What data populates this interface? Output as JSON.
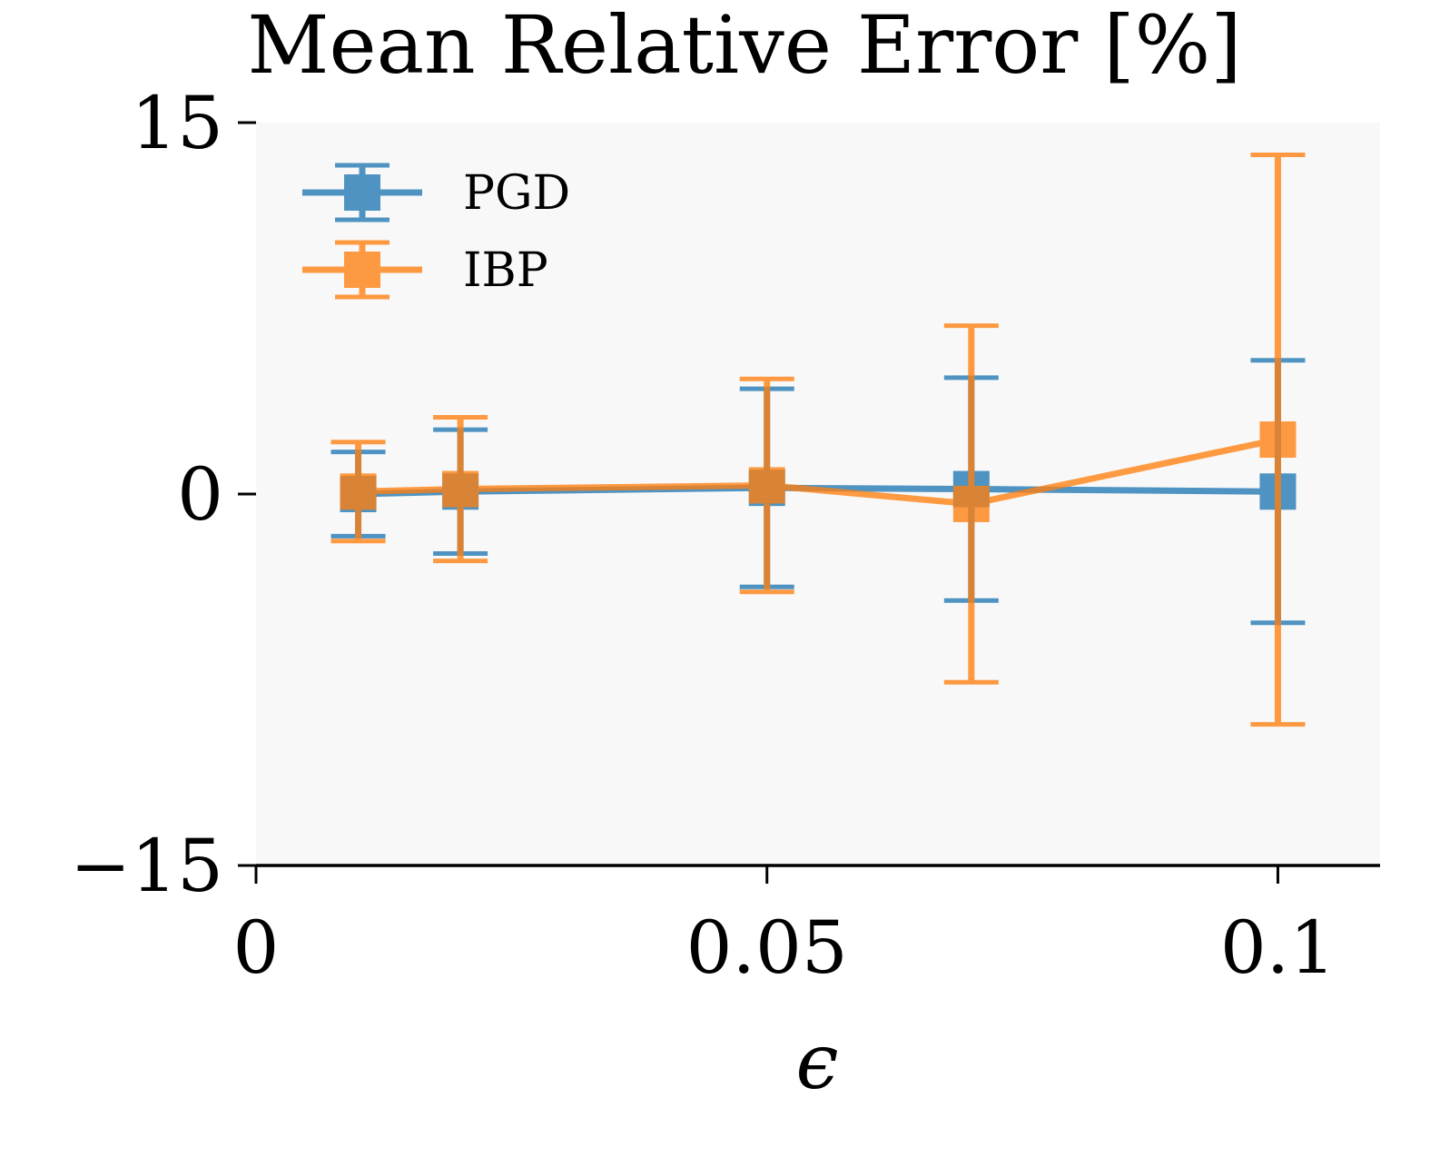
{
  "chart_data": {
    "type": "line",
    "title": "Mean Relative Error [%]",
    "xlabel": "ϵ",
    "ylabel": "",
    "xlim": [
      0,
      0.11
    ],
    "ylim": [
      -15,
      15
    ],
    "xticks": [
      0,
      0.05,
      0.1
    ],
    "xtick_labels": [
      "0",
      "0.05",
      "0.1"
    ],
    "yticks": [
      -15,
      0,
      15
    ],
    "ytick_labels": [
      "−15",
      "0",
      "15"
    ],
    "grid": false,
    "legend_position": "top-left",
    "series": [
      {
        "name": "PGD",
        "color": "#1f77b4",
        "marker": "square",
        "x": [
          0.01,
          0.02,
          0.05,
          0.07,
          0.1
        ],
        "y": [
          0.0,
          0.1,
          0.25,
          0.2,
          0.1
        ],
        "yerr": [
          1.7,
          2.5,
          4.0,
          4.5,
          5.3
        ]
      },
      {
        "name": "IBP",
        "color": "#ff7f0e",
        "marker": "square",
        "x": [
          0.01,
          0.02,
          0.05,
          0.07,
          0.1
        ],
        "y": [
          0.1,
          0.2,
          0.35,
          -0.4,
          2.2
        ],
        "yerr": [
          2.0,
          2.9,
          4.3,
          7.2,
          11.5
        ]
      }
    ]
  }
}
